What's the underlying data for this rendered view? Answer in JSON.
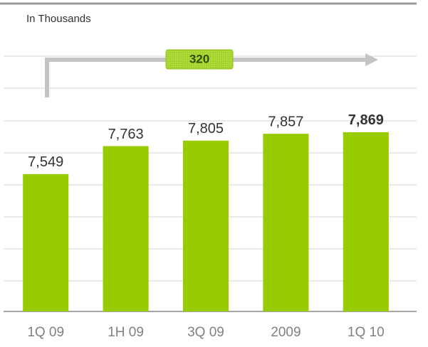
{
  "chart_data": {
    "type": "bar",
    "subtitle": "In Thousands",
    "categories": [
      "1Q 09",
      "1H 09",
      "3Q 09",
      "2009",
      "1Q 10"
    ],
    "values": [
      7549,
      7763,
      7805,
      7857,
      7869
    ],
    "value_labels": [
      "7,549",
      "7,763",
      "7,805",
      "7,857",
      "7,869"
    ],
    "color": "#99cc00",
    "ylim": [
      6500,
      8450
    ],
    "annotation": "320"
  }
}
